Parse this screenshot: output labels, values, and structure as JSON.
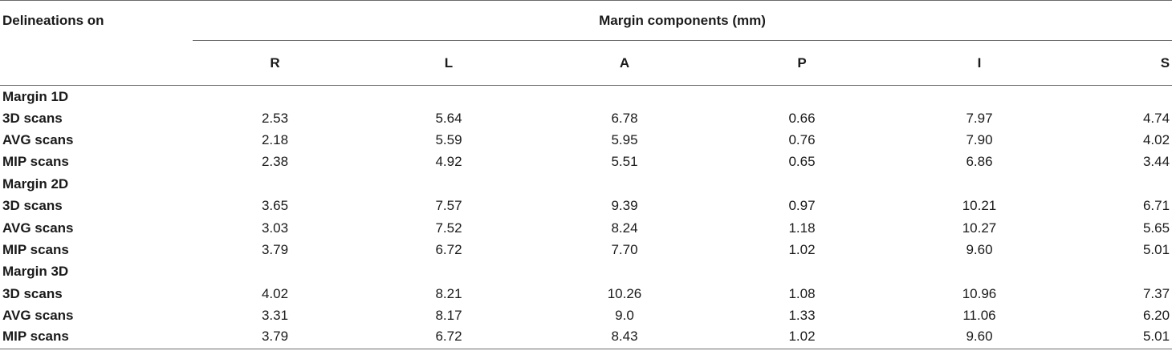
{
  "header": {
    "row_label": "Delineations on",
    "group_label": "Margin components (mm)",
    "columns": [
      "R",
      "L",
      "A",
      "P",
      "I",
      "S"
    ]
  },
  "groups": [
    {
      "title": "Margin 1D",
      "rows": [
        {
          "label": "3D scans",
          "values": [
            "2.53",
            "5.64",
            "6.78",
            "0.66",
            "7.97",
            "4.74"
          ]
        },
        {
          "label": "AVG scans",
          "values": [
            "2.18",
            "5.59",
            "5.95",
            "0.76",
            "7.90",
            "4.02"
          ]
        },
        {
          "label": "MIP scans",
          "values": [
            "2.38",
            "4.92",
            "5.51",
            "0.65",
            "6.86",
            "3.44"
          ]
        }
      ]
    },
    {
      "title": "Margin 2D",
      "rows": [
        {
          "label": "3D scans",
          "values": [
            "3.65",
            "7.57",
            "9.39",
            "0.97",
            "10.21",
            "6.71"
          ]
        },
        {
          "label": "AVG scans",
          "values": [
            "3.03",
            "7.52",
            "8.24",
            "1.18",
            "10.27",
            "5.65"
          ]
        },
        {
          "label": "MIP scans",
          "values": [
            "3.79",
            "6.72",
            "7.70",
            "1.02",
            "9.60",
            "5.01"
          ]
        }
      ]
    },
    {
      "title": "Margin 3D",
      "rows": [
        {
          "label": "3D scans",
          "values": [
            "4.02",
            "8.21",
            "10.26",
            "1.08",
            "10.96",
            "7.37"
          ]
        },
        {
          "label": "AVG scans",
          "values": [
            "3.31",
            "8.17",
            "9.0",
            "1.33",
            "11.06",
            "6.20"
          ]
        },
        {
          "label": "MIP scans",
          "values": [
            "3.79",
            "6.72",
            "8.43",
            "1.02",
            "9.60",
            "5.01"
          ]
        }
      ]
    }
  ]
}
